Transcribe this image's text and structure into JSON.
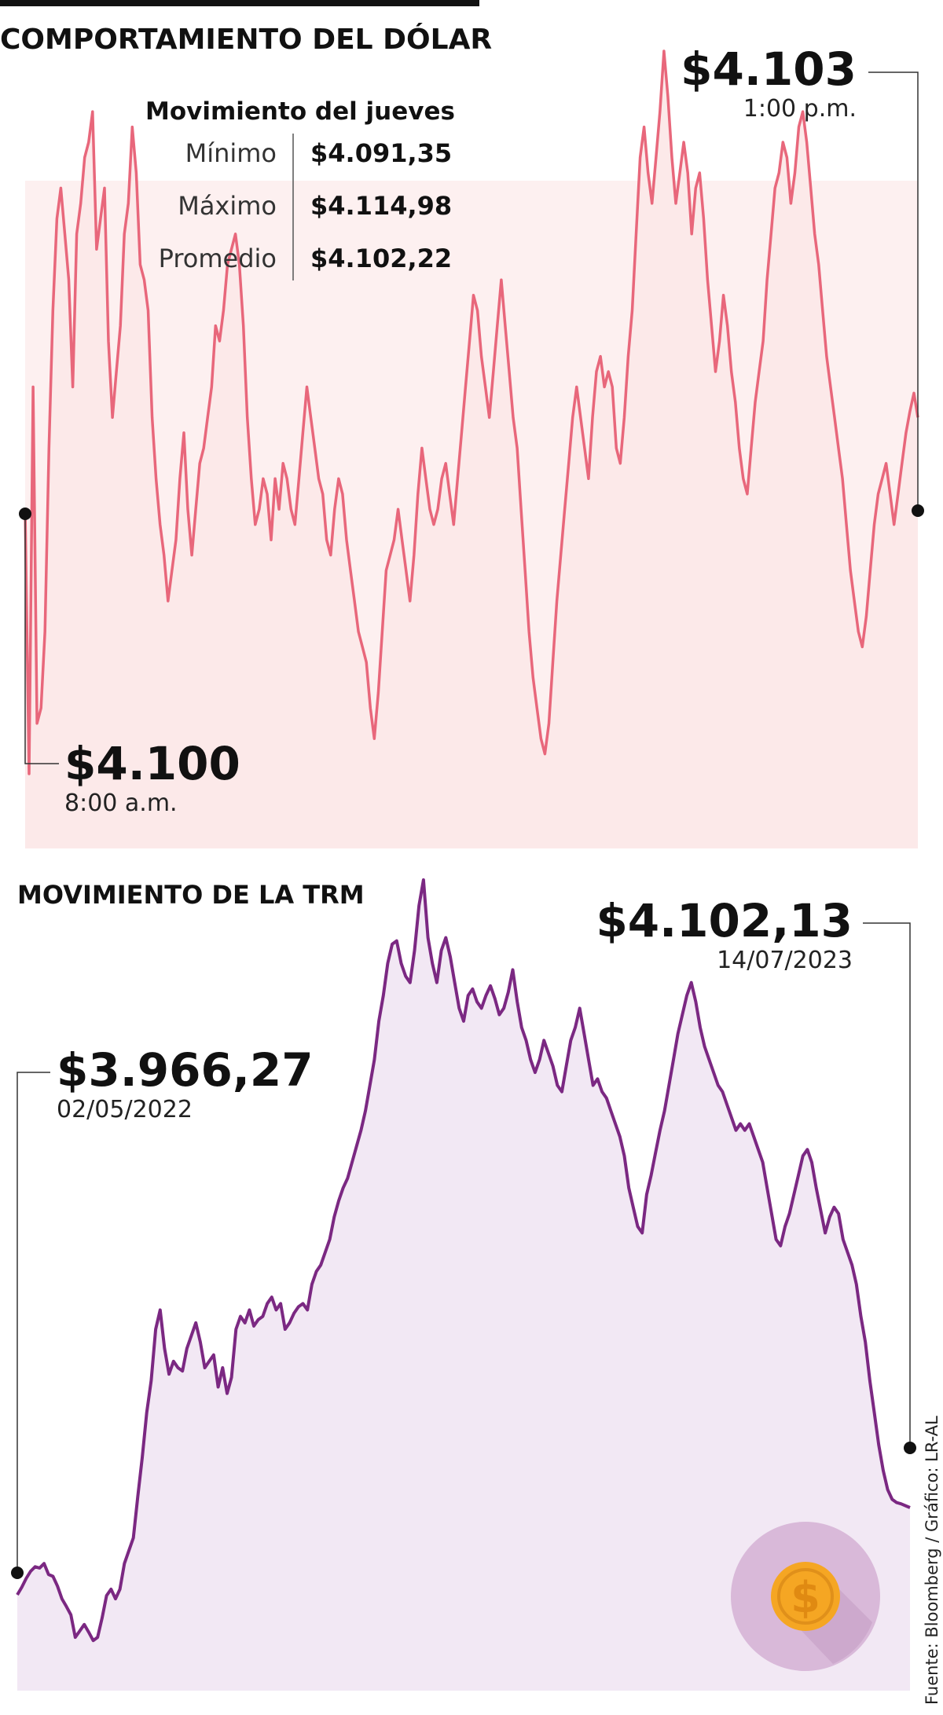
{
  "colors": {
    "dolar_line": "#e8677b",
    "dolar_fill": "#fce9e9",
    "trm_line": "#7b2882",
    "trm_fill": "#f2e8f4",
    "coin_circle": "#d9b9d9",
    "coin_gold": "#f5a623"
  },
  "icon": "dollar-coin-icon",
  "source": "Fuente: Bloomberg / Gráfico: LR-AL",
  "chart_data": [
    {
      "type": "area",
      "title": "COMPORTAMIENTO DEL DÓLAR",
      "stats": {
        "heading": "Movimiento del jueves",
        "rows": [
          {
            "label": "Mínimo",
            "value": "$4.091,35"
          },
          {
            "label": "Máximo",
            "value": "$4.114,98"
          },
          {
            "label": "Promedio",
            "value": "$4.102,22"
          }
        ]
      },
      "start": {
        "value": "$4.100",
        "time": "8:00 a.m."
      },
      "end": {
        "value": "$4.103",
        "time": "1:00 p.m."
      },
      "ylim": [
        4091.35,
        4114.98
      ],
      "values": [
        4100,
        4091.35,
        4104.0,
        4093.0,
        4093.5,
        4096.0,
        4102.0,
        4106.5,
        4109.5,
        4110.5,
        4109.0,
        4107.5,
        4104.0,
        4109.0,
        4110.0,
        4111.5,
        4112.0,
        4113.0,
        4108.5,
        4109.5,
        4110.5,
        4105.5,
        4103.0,
        4104.5,
        4106.0,
        4109.0,
        4110.0,
        4112.5,
        4111.0,
        4108.0,
        4107.5,
        4106.5,
        4103.0,
        4101.0,
        4099.5,
        4098.5,
        4097.0,
        4098.0,
        4099.0,
        4101.0,
        4102.5,
        4100.0,
        4098.5,
        4100.0,
        4101.5,
        4102.0,
        4103.0,
        4104.0,
        4106.0,
        4105.5,
        4106.5,
        4108.0,
        4108.5,
        4109.0,
        4108.0,
        4106.0,
        4103.0,
        4101.0,
        4099.5,
        4100.0,
        4101.0,
        4100.5,
        4099.0,
        4101.0,
        4100.0,
        4101.5,
        4101.0,
        4100.0,
        4099.5,
        4101.0,
        4102.5,
        4104.0,
        4103.0,
        4102.0,
        4101.0,
        4100.5,
        4099.0,
        4098.5,
        4100.0,
        4101.0,
        4100.5,
        4099.0,
        4098.0,
        4097.0,
        4096.0,
        4095.5,
        4095.0,
        4093.5,
        4092.5,
        4094.0,
        4096.0,
        4098.0,
        4098.5,
        4099.0,
        4100.0,
        4099.0,
        4098.0,
        4097.0,
        4098.5,
        4100.5,
        4102.0,
        4101.0,
        4100.0,
        4099.5,
        4100.0,
        4101.0,
        4101.5,
        4100.5,
        4099.5,
        4101.0,
        4102.5,
        4104.0,
        4105.5,
        4107.0,
        4106.5,
        4105.0,
        4104.0,
        4103.0,
        4104.5,
        4106.0,
        4107.5,
        4106.0,
        4104.5,
        4103.0,
        4102.0,
        4100.0,
        4098.0,
        4096.0,
        4094.5,
        4093.5,
        4092.5,
        4092.0,
        4093.0,
        4095.0,
        4097.0,
        4098.5,
        4100.0,
        4101.5,
        4103.0,
        4104.0,
        4103.0,
        4102.0,
        4101.0,
        4103.0,
        4104.5,
        4105.0,
        4104.0,
        4104.5,
        4104.0,
        4102.0,
        4101.5,
        4103.0,
        4105.0,
        4106.5,
        4109.0,
        4111.5,
        4112.5,
        4111.0,
        4110.0,
        4111.5,
        4113.0,
        4114.98,
        4113.5,
        4111.5,
        4110.0,
        4111.0,
        4112.0,
        4111.0,
        4109.0,
        4110.5,
        4111.0,
        4109.5,
        4107.5,
        4106.0,
        4104.5,
        4105.5,
        4107.0,
        4106.0,
        4104.5,
        4103.5,
        4102.0,
        4101.0,
        4100.5,
        4102.0,
        4103.5,
        4104.5,
        4105.5,
        4107.5,
        4109.0,
        4110.5,
        4111.0,
        4112.0,
        4111.5,
        4110.0,
        4111.0,
        4112.5,
        4113.0,
        4112.0,
        4110.5,
        4109.0,
        4108.0,
        4106.5,
        4105.0,
        4104.0,
        4103.0,
        4102.0,
        4101.0,
        4099.5,
        4098.0,
        4097.0,
        4096.0,
        4095.5,
        4096.5,
        4098.0,
        4099.5,
        4100.5,
        4101.0,
        4101.5,
        4100.5,
        4099.5,
        4100.5,
        4101.5,
        4102.5,
        4103.2,
        4103.8,
        4103.0
      ]
    },
    {
      "type": "line",
      "title": "MOVIMIENTO DE LA TRM",
      "start": {
        "value": "$3.966,27",
        "date": "02/05/2022"
      },
      "end": {
        "value": "$4.102,13",
        "date": "14/07/2023"
      },
      "ylim": [
        3850,
        5080
      ],
      "values": [
        3966.27,
        3978,
        3992,
        4003,
        4010,
        4008,
        4015,
        3998,
        3995,
        3980,
        3960,
        3948,
        3935,
        3900,
        3910,
        3920,
        3908,
        3895,
        3900,
        3930,
        3965,
        3975,
        3960,
        3975,
        4015,
        4035,
        4055,
        4120,
        4180,
        4250,
        4300,
        4380,
        4410,
        4350,
        4310,
        4330,
        4320,
        4315,
        4350,
        4370,
        4390,
        4360,
        4320,
        4330,
        4340,
        4290,
        4320,
        4280,
        4305,
        4380,
        4400,
        4390,
        4410,
        4385,
        4395,
        4400,
        4420,
        4430,
        4410,
        4420,
        4380,
        4390,
        4405,
        4415,
        4420,
        4410,
        4450,
        4470,
        4480,
        4500,
        4520,
        4555,
        4580,
        4600,
        4615,
        4640,
        4665,
        4690,
        4720,
        4760,
        4800,
        4860,
        4900,
        4950,
        4980,
        4985,
        4950,
        4930,
        4920,
        4970,
        5040,
        5080,
        4990,
        4950,
        4920,
        4970,
        4990,
        4960,
        4920,
        4880,
        4860,
        4900,
        4910,
        4890,
        4880,
        4900,
        4915,
        4895,
        4870,
        4880,
        4905,
        4940,
        4890,
        4850,
        4830,
        4800,
        4780,
        4800,
        4830,
        4810,
        4790,
        4760,
        4750,
        4790,
        4830,
        4850,
        4880,
        4840,
        4800,
        4760,
        4770,
        4750,
        4740,
        4720,
        4700,
        4680,
        4650,
        4600,
        4570,
        4540,
        4530,
        4590,
        4620,
        4655,
        4690,
        4720,
        4760,
        4800,
        4840,
        4870,
        4900,
        4920,
        4890,
        4850,
        4820,
        4800,
        4780,
        4760,
        4750,
        4730,
        4710,
        4690,
        4700,
        4690,
        4700,
        4680,
        4660,
        4640,
        4600,
        4560,
        4520,
        4510,
        4540,
        4560,
        4590,
        4620,
        4650,
        4660,
        4640,
        4600,
        4565,
        4530,
        4555,
        4570,
        4560,
        4520,
        4500,
        4480,
        4450,
        4400,
        4360,
        4300,
        4250,
        4200,
        4160,
        4130,
        4115,
        4110,
        4108,
        4105,
        4102.13
      ]
    }
  ]
}
